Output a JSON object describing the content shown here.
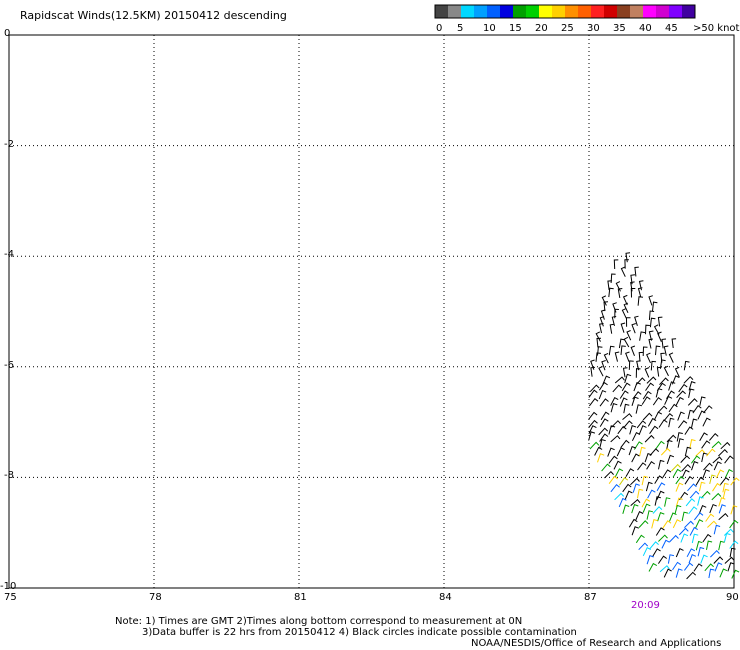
{
  "header": {
    "title": "Rapidscat Winds(12.5KM) 20150412 descending",
    "colorbar": {
      "labels": [
        "0",
        "5",
        "10",
        "15",
        "20",
        "25",
        "30",
        "35",
        "40",
        "45",
        ">50 knots"
      ],
      "colors": [
        "#444444",
        "#888888",
        "#00d8ff",
        "#00a0ff",
        "#0060ff",
        "#0000e0",
        "#00a000",
        "#00d000",
        "#ffff00",
        "#ffd000",
        "#ff9000",
        "#ff6000",
        "#ff2020",
        "#d00000",
        "#8a4020",
        "#c08060",
        "#ff00ff",
        "#d000d0",
        "#8000ff",
        "#4000a0"
      ]
    }
  },
  "map": {
    "lon_ticks": [
      "75",
      "78",
      "81",
      "84",
      "87",
      "90"
    ],
    "lat_ticks": [
      "0",
      "-2",
      "-4",
      "-6",
      "-8",
      "-10"
    ],
    "lon_range": [
      75,
      90
    ],
    "lat_range": [
      0,
      -10
    ],
    "time_label": "20:09"
  },
  "chart_data": {
    "type": "scatter",
    "title": "Rapidscat Winds(12.5KM) 20150412 descending",
    "xlim": [
      75,
      90
    ],
    "ylim": [
      -10,
      0
    ],
    "grid": true,
    "note": "wind barbs in swath approx lon 87-90, lat -4 to -10"
  },
  "footer": {
    "note_line1": "Note: 1) Times are GMT 2)Times along bottom correspond to measurement at 0N",
    "note_line2": "3)Data buffer is 22 hrs from 20150412 4) Black circles indicate possible contamination",
    "credit": "NOAA/NESDIS/Office of Research and Applications"
  }
}
